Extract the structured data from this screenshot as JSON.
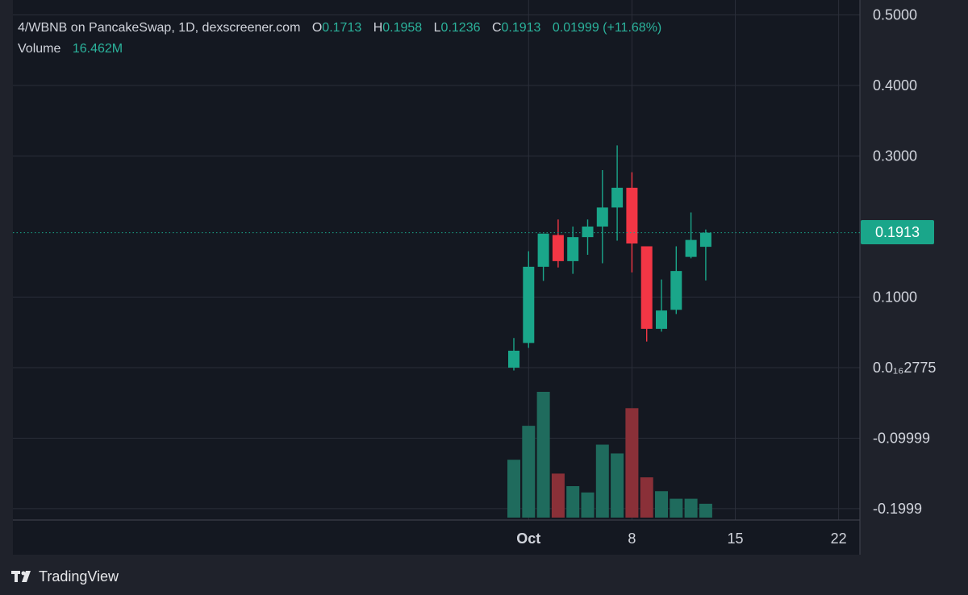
{
  "legend": {
    "pair": "4/WBNB on PancakeSwap, 1D, dexscreener.com",
    "open_key": "O",
    "open": "0.1713",
    "high_key": "H",
    "high": "0.1958",
    "low_key": "L",
    "low": "0.1236",
    "close_key": "C",
    "close": "0.1913",
    "change": "0.01999 (+11.68%)",
    "volume_key": "Volume",
    "volume": "16.462M"
  },
  "last_price_label": "0.1913",
  "brand": {
    "name": "TradingView"
  },
  "colors": {
    "background": "#1f222b",
    "plot_background": "#141821",
    "grid": "#2a2e39",
    "up": "#1aa68a",
    "down": "#f23645",
    "up_volume": "#1f6b5d",
    "down_volume": "#8a3038",
    "text": "#d1d4dc"
  },
  "chart_data": {
    "type": "candlestick",
    "interval": "1D",
    "x_tick_labels": [
      "Oct",
      "8",
      "15",
      "22"
    ],
    "y_tick_labels": [
      "0.5000",
      "0.4000",
      "0.3000",
      "0.1000",
      "0.0₁₆2775",
      "-0.09999",
      "-0.1999"
    ],
    "y_tick_values": [
      0.5,
      0.4,
      0.3,
      0.1,
      0.0,
      -0.09999,
      -0.1999
    ],
    "last_price": 0.1913,
    "ylim": [
      -0.21,
      0.52
    ],
    "grid": true,
    "candles": [
      {
        "date": "Sep 30",
        "open": 0.0,
        "high": 0.042,
        "low": -0.004,
        "close": 0.024,
        "volume": 0.46
      },
      {
        "date": "Oct 1",
        "open": 0.035,
        "high": 0.165,
        "low": 0.028,
        "close": 0.143,
        "volume": 0.73
      },
      {
        "date": "Oct 2",
        "open": 0.143,
        "high": 0.19,
        "low": 0.123,
        "close": 0.19,
        "volume": 1.0
      },
      {
        "date": "Oct 3",
        "open": 0.188,
        "high": 0.21,
        "low": 0.142,
        "close": 0.151,
        "volume": 0.35
      },
      {
        "date": "Oct 4",
        "open": 0.151,
        "high": 0.2,
        "low": 0.133,
        "close": 0.185,
        "volume": 0.25
      },
      {
        "date": "Oct 5",
        "open": 0.185,
        "high": 0.21,
        "low": 0.16,
        "close": 0.2,
        "volume": 0.2
      },
      {
        "date": "Oct 6",
        "open": 0.2,
        "high": 0.28,
        "low": 0.148,
        "close": 0.227,
        "volume": 0.58
      },
      {
        "date": "Oct 7",
        "open": 0.227,
        "high": 0.315,
        "low": 0.18,
        "close": 0.255,
        "volume": 0.51
      },
      {
        "date": "Oct 8",
        "open": 0.255,
        "high": 0.277,
        "low": 0.135,
        "close": 0.176,
        "volume": 0.87
      },
      {
        "date": "Oct 9",
        "open": 0.172,
        "high": 0.172,
        "low": 0.037,
        "close": 0.055,
        "volume": 0.32
      },
      {
        "date": "Oct 10",
        "open": 0.055,
        "high": 0.125,
        "low": 0.051,
        "close": 0.081,
        "volume": 0.21
      },
      {
        "date": "Oct 11",
        "open": 0.082,
        "high": 0.172,
        "low": 0.076,
        "close": 0.137,
        "volume": 0.15
      },
      {
        "date": "Oct 12",
        "open": 0.157,
        "high": 0.22,
        "low": 0.155,
        "close": 0.181,
        "volume": 0.15
      },
      {
        "date": "Oct 13",
        "open": 0.1713,
        "high": 0.1958,
        "low": 0.1236,
        "close": 0.1913,
        "volume": 0.11
      }
    ]
  }
}
